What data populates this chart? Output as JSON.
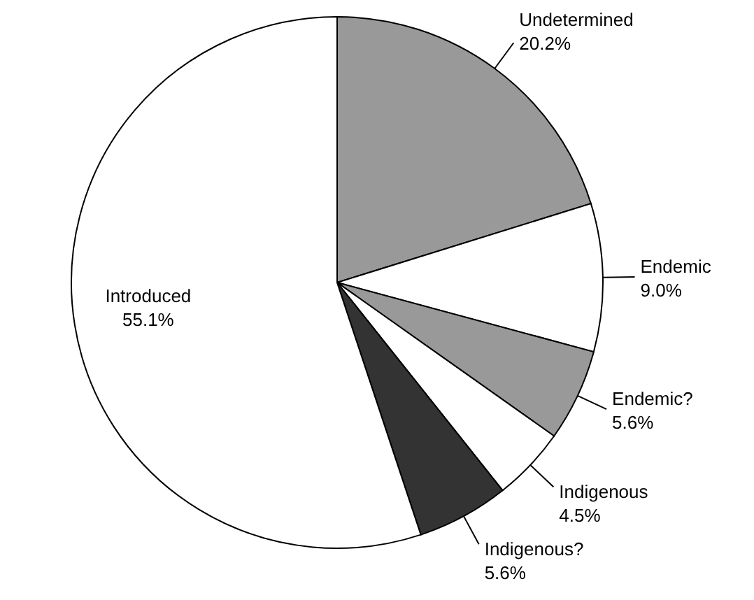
{
  "chart_data": {
    "type": "pie",
    "categories": [
      "Undetermined",
      "Endemic",
      "Endemic?",
      "Indigenous",
      "Indigenous?",
      "Introduced"
    ],
    "values": [
      20.2,
      9.0,
      5.6,
      4.5,
      5.6,
      55.1
    ],
    "colors": [
      "#999999",
      "#ffffff",
      "#999999",
      "#ffffff",
      "#333333",
      "#ffffff"
    ],
    "value_labels": [
      "20.2%",
      "9.0%",
      "5.6%",
      "4.5%",
      "5.6%",
      "55.1%"
    ]
  }
}
